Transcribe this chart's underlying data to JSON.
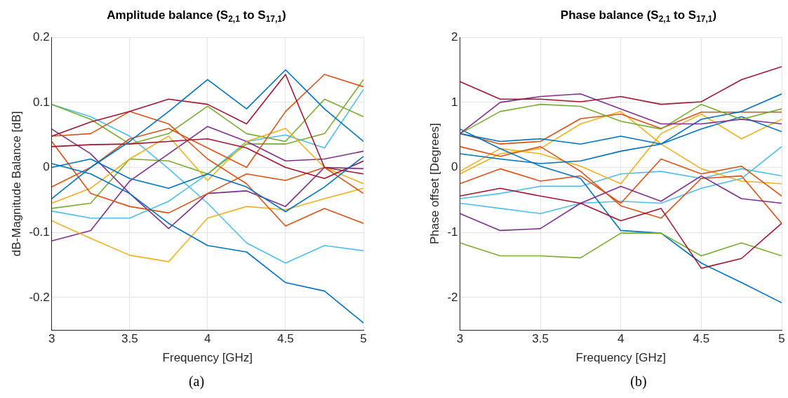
{
  "chart_data": [
    {
      "type": "line",
      "title": "Amplitude balance (S$_{2,1}$ to S$_{17,1}$)",
      "xlabel": "Frequency [GHz]",
      "ylabel": "dB-Magnitude Balance [dB]",
      "annotations": [
        "(a)"
      ],
      "x": [
        3,
        3.25,
        3.5,
        3.75,
        4,
        4.25,
        4.5,
        4.75,
        5
      ],
      "xlim": [
        3,
        5
      ],
      "xticks": [
        3,
        3.5,
        4,
        4.5,
        5
      ],
      "ylim": [
        -0.25,
        0.2
      ],
      "yticks": [
        -0.2,
        -0.1,
        0,
        0.1,
        0.2
      ],
      "grid": true,
      "series": [
        {
          "color": "#0072bd",
          "values": [
            0.006,
            -0.01,
            -0.04,
            -0.086,
            -0.12,
            -0.13,
            -0.177,
            -0.19,
            -0.239
          ]
        },
        {
          "color": "#0072bd",
          "values": [
            -0.048,
            0.0,
            0.04,
            0.086,
            0.135,
            0.09,
            0.15,
            0.09,
            0.04
          ]
        },
        {
          "color": "#0072bd",
          "values": [
            0.0,
            0.013,
            -0.017,
            -0.032,
            -0.01,
            -0.03,
            -0.068,
            -0.03,
            0.017
          ]
        },
        {
          "color": "#a2142f",
          "values": [
            0.048,
            0.07,
            0.086,
            0.105,
            0.097,
            0.067,
            0.143,
            0.0,
            -0.01
          ]
        },
        {
          "color": "#a2142f",
          "values": [
            0.032,
            0.035,
            0.036,
            0.04,
            0.044,
            0.03,
            0.0,
            -0.017,
            0.01
          ]
        },
        {
          "color": "#d95319",
          "values": [
            -0.03,
            0.0,
            0.044,
            0.06,
            0.03,
            0.0,
            0.086,
            0.143,
            0.124
          ]
        },
        {
          "color": "#d95319",
          "values": [
            0.048,
            0.052,
            0.086,
            0.067,
            0.013,
            -0.025,
            -0.09,
            -0.063,
            -0.086
          ]
        },
        {
          "color": "#d95319",
          "values": [
            0.04,
            -0.04,
            -0.06,
            -0.07,
            -0.04,
            -0.01,
            -0.02,
            0.0,
            -0.04
          ]
        },
        {
          "color": "#edb120",
          "values": [
            -0.082,
            -0.109,
            -0.135,
            -0.145,
            -0.078,
            -0.06,
            -0.065,
            -0.048,
            -0.032
          ]
        },
        {
          "color": "#edb120",
          "values": [
            -0.055,
            -0.032,
            0.013,
            0.048,
            -0.02,
            0.04,
            0.06,
            0.0,
            -0.025
          ]
        },
        {
          "color": "#7e2f8e",
          "values": [
            -0.113,
            -0.097,
            -0.021,
            0.021,
            0.063,
            0.04,
            0.01,
            0.013,
            0.025
          ]
        },
        {
          "color": "#7e2f8e",
          "values": [
            0.059,
            0.021,
            -0.04,
            -0.094,
            -0.04,
            -0.036,
            -0.06,
            0.0,
            -0.002
          ]
        },
        {
          "color": "#77ac30",
          "values": [
            0.097,
            0.074,
            0.036,
            0.052,
            0.094,
            0.052,
            0.04,
            0.105,
            0.078
          ]
        },
        {
          "color": "#77ac30",
          "values": [
            -0.063,
            -0.055,
            0.013,
            0.01,
            -0.01,
            0.036,
            0.036,
            0.052,
            0.135
          ]
        },
        {
          "color": "#4dbeee",
          "values": [
            0.097,
            0.078,
            0.048,
            -0.002,
            -0.055,
            -0.116,
            -0.147,
            -0.12,
            -0.128
          ]
        },
        {
          "color": "#4dbeee",
          "values": [
            -0.067,
            -0.078,
            -0.078,
            -0.052,
            -0.01,
            0.04,
            0.05,
            0.03,
            0.12
          ]
        }
      ]
    },
    {
      "type": "line",
      "title": "Phase balance (S$_{2,1}$ to S$_{17,1}$)",
      "xlabel": "Frequency [GHz]",
      "ylabel": "Phase offset [Degrees]",
      "annotations": [
        "(b)"
      ],
      "x": [
        3,
        3.25,
        3.5,
        3.75,
        4,
        4.25,
        4.5,
        4.75,
        5
      ],
      "xlim": [
        3,
        5
      ],
      "xticks": [
        3,
        3.5,
        4,
        4.5,
        5
      ],
      "ylim": [
        -2.5,
        2
      ],
      "yticks": [
        -2,
        -1,
        0,
        1,
        2
      ],
      "grid": true,
      "series": [
        {
          "color": "#a2142f",
          "values": [
            1.32,
            1.05,
            1.05,
            1.01,
            1.09,
            0.97,
            1.01,
            1.35,
            1.55
          ]
        },
        {
          "color": "#a2142f",
          "values": [
            -0.44,
            -0.32,
            -0.44,
            -0.55,
            -0.82,
            -0.63,
            -1.55,
            -1.4,
            -0.86
          ]
        },
        {
          "color": "#7e2f8e",
          "values": [
            0.52,
            1.0,
            1.09,
            1.13,
            0.9,
            0.67,
            0.67,
            0.74,
            0.67
          ]
        },
        {
          "color": "#7e2f8e",
          "values": [
            -0.71,
            -0.97,
            -0.94,
            -0.55,
            -0.29,
            -0.52,
            -0.13,
            -0.48,
            -0.55
          ]
        },
        {
          "color": "#77ac30",
          "values": [
            0.52,
            0.86,
            0.97,
            0.94,
            0.71,
            0.59,
            0.97,
            0.74,
            0.9
          ]
        },
        {
          "color": "#77ac30",
          "values": [
            -1.16,
            -1.36,
            -1.36,
            -1.39,
            -1.01,
            -1.01,
            -1.36,
            -1.16,
            -1.36
          ]
        },
        {
          "color": "#0072bd",
          "values": [
            0.59,
            0.29,
            0.02,
            -0.17,
            -0.97,
            -1.01,
            -1.47,
            -1.77,
            -2.08
          ]
        },
        {
          "color": "#0072bd",
          "values": [
            0.52,
            0.4,
            0.44,
            0.36,
            0.48,
            0.36,
            0.74,
            0.86,
            1.13
          ]
        },
        {
          "color": "#0072bd",
          "values": [
            0.21,
            0.13,
            0.06,
            0.1,
            0.25,
            0.36,
            0.59,
            0.78,
            0.55
          ]
        },
        {
          "color": "#d95319",
          "values": [
            0.52,
            0.36,
            0.4,
            0.75,
            0.82,
            0.6,
            0.85,
            0.85,
            0.85
          ]
        },
        {
          "color": "#d95319",
          "values": [
            0.32,
            0.17,
            0.32,
            -0.06,
            -0.59,
            -0.78,
            -0.17,
            -0.13,
            -0.86
          ]
        },
        {
          "color": "#d95319",
          "values": [
            -0.25,
            -0.02,
            -0.21,
            -0.13,
            -0.55,
            0.13,
            -0.1,
            0.02,
            -0.44
          ]
        },
        {
          "color": "#edb120",
          "values": [
            -0.1,
            0.21,
            0.29,
            0.67,
            0.86,
            0.36,
            -0.02,
            -0.21,
            -0.25
          ]
        },
        {
          "color": "#edb120",
          "values": [
            -0.06,
            0.29,
            0.21,
            0.02,
            -0.25,
            0.52,
            0.82,
            0.44,
            0.74
          ]
        },
        {
          "color": "#4dbeee",
          "values": [
            -0.55,
            -0.63,
            -0.71,
            -0.55,
            -0.52,
            -0.55,
            -0.32,
            -0.17,
            0.32
          ]
        },
        {
          "color": "#4dbeee",
          "values": [
            -0.48,
            -0.4,
            -0.29,
            -0.29,
            -0.1,
            -0.06,
            -0.17,
            -0.02,
            -0.13
          ]
        }
      ]
    }
  ]
}
